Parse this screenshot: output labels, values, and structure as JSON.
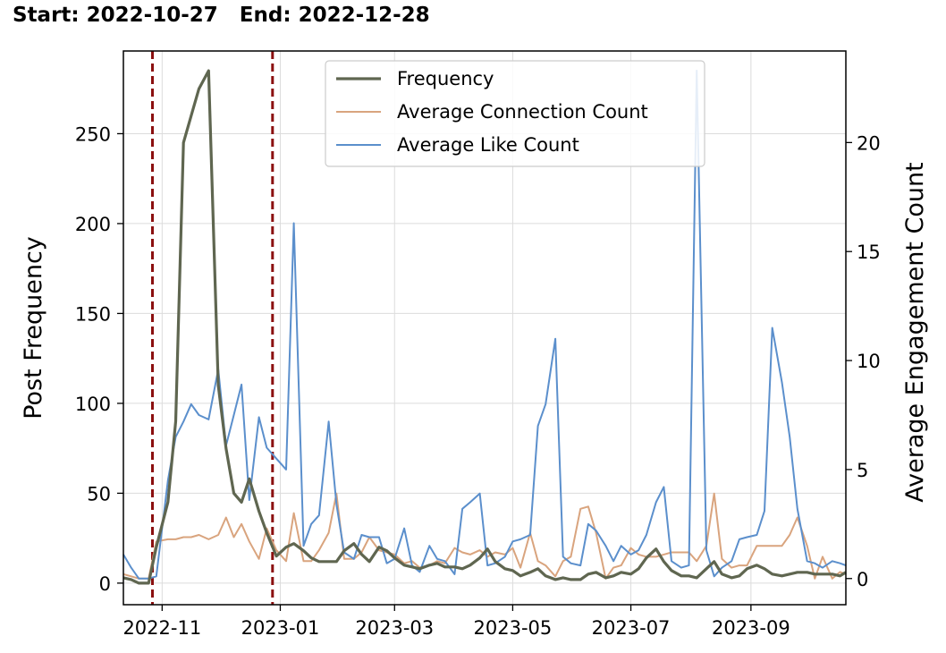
{
  "header": {
    "start_label": "Start:",
    "start_date": "2022-10-27",
    "end_label": "End:",
    "end_date": "2022-12-28"
  },
  "colors": {
    "frequency": "#5f6650",
    "connection": "#d9a47e",
    "like": "#5b8fcc",
    "marker": "#8b0f0f",
    "grid": "#dcdcdc"
  },
  "chart_data": {
    "type": "line",
    "xlabel": "",
    "ylabel": "Post Frequency",
    "y2label": "Average Engagement Count",
    "xlim": [
      "2022-10-12",
      "2023-10-20"
    ],
    "ylim": [
      -12,
      296
    ],
    "y2lim": [
      -1.2,
      24.2
    ],
    "y_ticks": [
      0,
      50,
      100,
      150,
      200,
      250
    ],
    "y2_ticks": [
      0,
      5,
      10,
      15,
      20
    ],
    "x_ticks": [
      {
        "date": "2022-11-01",
        "label": "2022-11"
      },
      {
        "date": "2023-01-01",
        "label": "2023-01"
      },
      {
        "date": "2023-03-01",
        "label": "2023-03"
      },
      {
        "date": "2023-05-01",
        "label": "2023-05"
      },
      {
        "date": "2023-07-01",
        "label": "2023-07"
      },
      {
        "date": "2023-09-01",
        "label": "2023-09"
      }
    ],
    "grid": true,
    "legend_position": "top-center",
    "markers": [
      "2022-10-27",
      "2022-12-28"
    ],
    "dates": [
      "2022-10-12",
      "2022-10-16",
      "2022-10-20",
      "2022-10-25",
      "2022-10-29",
      "2022-11-04",
      "2022-11-08",
      "2022-11-12",
      "2022-11-16",
      "2022-11-20",
      "2022-11-25",
      "2022-11-30",
      "2022-12-04",
      "2022-12-08",
      "2022-12-12",
      "2022-12-16",
      "2022-12-21",
      "2022-12-25",
      "2022-12-30",
      "2023-01-04",
      "2023-01-08",
      "2023-01-13",
      "2023-01-17",
      "2023-01-21",
      "2023-01-26",
      "2023-01-30",
      "2023-02-03",
      "2023-02-08",
      "2023-02-12",
      "2023-02-16",
      "2023-02-21",
      "2023-02-25",
      "2023-03-01",
      "2023-03-06",
      "2023-03-10",
      "2023-03-14",
      "2023-03-19",
      "2023-03-23",
      "2023-03-27",
      "2023-04-01",
      "2023-04-05",
      "2023-04-09",
      "2023-04-14",
      "2023-04-18",
      "2023-04-22",
      "2023-04-27",
      "2023-05-01",
      "2023-05-05",
      "2023-05-10",
      "2023-05-14",
      "2023-05-18",
      "2023-05-23",
      "2023-05-27",
      "2023-05-31",
      "2023-06-05",
      "2023-06-09",
      "2023-06-13",
      "2023-06-18",
      "2023-06-22",
      "2023-06-26",
      "2023-07-01",
      "2023-07-05",
      "2023-07-09",
      "2023-07-14",
      "2023-07-18",
      "2023-07-22",
      "2023-07-27",
      "2023-07-31",
      "2023-08-04",
      "2023-08-09",
      "2023-08-13",
      "2023-08-17",
      "2023-08-22",
      "2023-08-26",
      "2023-08-30",
      "2023-09-04",
      "2023-09-08",
      "2023-09-12",
      "2023-09-17",
      "2023-09-21",
      "2023-09-25",
      "2023-09-30",
      "2023-10-04",
      "2023-10-08",
      "2023-10-13",
      "2023-10-17",
      "2023-10-20"
    ],
    "series": [
      {
        "name": "Frequency",
        "axis": "left",
        "values": [
          3,
          2,
          0,
          0,
          20,
          45,
          90,
          245,
          260,
          275,
          285,
          110,
          75,
          50,
          45,
          58,
          40,
          28,
          15,
          20,
          22,
          18,
          14,
          12,
          12,
          12,
          18,
          22,
          16,
          12,
          20,
          18,
          14,
          10,
          9,
          8,
          10,
          11,
          9,
          9,
          8,
          10,
          14,
          19,
          12,
          8,
          7,
          4,
          6,
          8,
          4,
          2,
          3,
          2,
          2,
          5,
          6,
          3,
          4,
          6,
          5,
          8,
          14,
          19,
          12,
          7,
          4,
          4,
          3,
          8,
          12,
          5,
          3,
          4,
          8,
          10,
          8,
          5,
          4,
          5,
          6,
          6,
          5,
          5,
          5,
          4,
          6
        ]
      },
      {
        "name": "Average Connection Count",
        "axis": "right",
        "values": [
          0.2,
          0.1,
          0,
          0,
          1.7,
          1.8,
          1.8,
          1.9,
          1.9,
          2.0,
          1.8,
          2.0,
          2.8,
          1.9,
          2.5,
          1.7,
          0.9,
          2.3,
          1.3,
          0.8,
          3.0,
          0.8,
          0.8,
          1.3,
          2.1,
          3.9,
          0.9,
          0.9,
          1.2,
          1.9,
          1.3,
          1.2,
          1.1,
          0.7,
          0.8,
          0.5,
          0.6,
          0.8,
          0.7,
          1.4,
          1.2,
          1.1,
          1.3,
          1.0,
          1.2,
          1.1,
          1.4,
          0.5,
          2.1,
          0.8,
          0.6,
          0.1,
          0.8,
          1.0,
          3.2,
          3.3,
          2.1,
          0.0,
          0.5,
          0.6,
          1.4,
          1.1,
          1.0,
          1.0,
          1.1,
          1.2,
          1.2,
          1.2,
          0.8,
          1.5,
          3.9,
          0.9,
          0.5,
          0.6,
          0.6,
          1.5,
          1.5,
          1.5,
          1.5,
          2.0,
          2.8,
          1.5,
          0.0,
          1.0,
          0.0,
          0.3,
          0.2
        ]
      },
      {
        "name": "Average Like Count",
        "axis": "right",
        "values": [
          1.1,
          0.5,
          0,
          0,
          0.1,
          4.5,
          6.5,
          7.2,
          8.0,
          7.5,
          7.3,
          9.6,
          6.1,
          7.5,
          8.9,
          3.6,
          7.4,
          6.0,
          5.5,
          5.0,
          16.3,
          1.5,
          2.5,
          2.9,
          7.2,
          3.4,
          1.2,
          0.9,
          2.0,
          1.9,
          1.9,
          0.7,
          0.9,
          2.3,
          0.6,
          0.3,
          1.5,
          0.9,
          0.8,
          0.2,
          3.2,
          3.5,
          3.9,
          0.6,
          0.7,
          1.0,
          1.7,
          1.8,
          2.0,
          7.0,
          8.0,
          11.0,
          1.0,
          0.7,
          0.6,
          2.5,
          2.2,
          1.5,
          0.8,
          1.5,
          1.1,
          1.3,
          2.0,
          3.5,
          4.2,
          0.8,
          0.5,
          0.6,
          23.3,
          1.3,
          0.1,
          0.5,
          0.8,
          1.8,
          1.9,
          2.0,
          3.1,
          11.5,
          9.0,
          6.5,
          3.2,
          0.8,
          0.7,
          0.5,
          0.8,
          0.7,
          0.6
        ]
      }
    ]
  }
}
